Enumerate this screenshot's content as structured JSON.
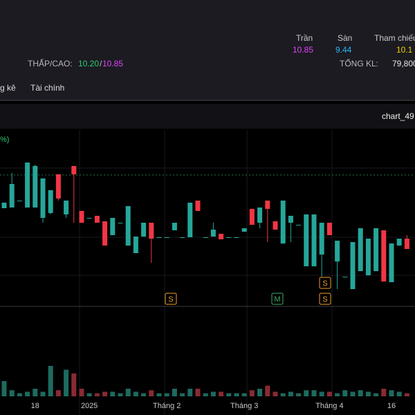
{
  "header": {
    "ceiling_label": "Trần",
    "ceiling": "10.85",
    "floor_label": "Sàn",
    "floor": "9.44",
    "ref_label": "Tham chiếu",
    "ref": "10.1",
    "lowhigh_label": "THẤP/CAO:",
    "low": "10.20",
    "separator": "/",
    "high": "10.85",
    "volume_label": "TỔNG KL:",
    "volume": "79,800"
  },
  "tabs": [
    "g kê",
    "Tài chính"
  ],
  "chart_title": "chart_49",
  "chart_data": {
    "type": "candlestick",
    "legend": "%)",
    "up_color": "#26a69a",
    "down_color": "#f23645",
    "volume_up_color": "#1d6b60",
    "volume_down_color": "#8a2a33",
    "ylim": [
      9.0,
      11.6
    ],
    "vlim": [
      0,
      50
    ],
    "categories": [
      null,
      null,
      null,
      null,
      "18",
      null,
      null,
      null,
      null,
      null,
      null,
      "2025",
      null,
      null,
      null,
      null,
      null,
      null,
      null,
      null,
      null,
      "Tháng 2",
      null,
      null,
      null,
      null,
      null,
      null,
      null,
      null,
      null,
      "Tháng 3",
      null,
      null,
      null,
      null,
      null,
      null,
      null,
      null,
      null,
      null,
      "Tháng 4",
      null,
      null,
      null,
      null,
      null,
      null,
      null,
      "16",
      null,
      null
    ],
    "open": [
      10.49,
      10.5,
      10.6,
      10.5,
      10.5,
      10.35,
      10.42,
      10.98,
      10.4,
      11.1,
      10.45,
      10.35,
      10.38,
      10.3,
      10.1,
      10.28,
      9.95,
      9.84,
      10.08,
      10.28,
      10.07,
      10.07,
      10.17,
      10.07,
      10.07,
      10.6,
      10.07,
      10.08,
      10.12,
      10.07,
      10.07,
      10.15,
      10.48,
      10.28,
      10.6,
      10.3,
      9.98,
      10.28,
      10.25,
      9.65,
      9.65,
      9.82,
      10.28,
      9.72,
      9.5,
      9.32,
      9.58,
      9.52,
      9.58,
      10.17,
      9.42,
      9.95,
      10.05
    ],
    "high": [
      10.57,
      11.0,
      10.6,
      11.15,
      11.12,
      10.92,
      10.75,
      10.98,
      10.6,
      11.1,
      10.45,
      10.35,
      10.38,
      10.3,
      10.35,
      10.28,
      10.52,
      10.08,
      10.28,
      10.28,
      10.07,
      10.07,
      10.28,
      10.07,
      10.57,
      10.6,
      10.07,
      10.28,
      10.12,
      10.07,
      10.07,
      10.2,
      10.48,
      10.5,
      10.6,
      10.3,
      10.6,
      10.38,
      10.25,
      10.4,
      10.4,
      10.28,
      10.28,
      10.02,
      9.5,
      10.0,
      10.2,
      10.05,
      10.2,
      10.17,
      9.98,
      10.05,
      10.1
    ],
    "low": [
      10.49,
      10.5,
      10.6,
      10.5,
      10.5,
      10.28,
      10.4,
      10.6,
      10.35,
      10.28,
      10.28,
      10.35,
      10.28,
      9.95,
      10.1,
      10.28,
      9.95,
      9.84,
      10.08,
      9.7,
      10.07,
      10.07,
      10.17,
      10.07,
      10.07,
      10.45,
      10.07,
      10.08,
      10.04,
      10.07,
      10.07,
      10.15,
      10.25,
      10.2,
      10.0,
      10.18,
      9.98,
      10.0,
      10.25,
      9.65,
      9.65,
      9.5,
      10.1,
      9.32,
      9.5,
      9.32,
      9.58,
      9.52,
      9.58,
      9.43,
      9.42,
      9.95,
      9.9
    ],
    "close": [
      10.57,
      10.84,
      10.6,
      11.15,
      11.1,
      10.92,
      10.75,
      10.63,
      10.6,
      10.98,
      10.28,
      10.35,
      10.28,
      9.95,
      10.35,
      10.28,
      10.52,
      10.08,
      10.28,
      10.05,
      10.07,
      10.07,
      10.28,
      10.07,
      10.57,
      10.45,
      10.07,
      10.18,
      10.04,
      10.07,
      10.07,
      10.2,
      10.25,
      10.5,
      10.48,
      10.18,
      10.6,
      10.38,
      10.25,
      10.4,
      10.4,
      10.28,
      10.1,
      10.02,
      9.5,
      10.0,
      10.2,
      10.05,
      10.2,
      9.43,
      9.98,
      10.05,
      9.9
    ],
    "volumes": [
      20,
      8,
      4,
      6,
      10,
      6,
      40,
      8,
      35,
      30,
      10,
      4,
      4,
      6,
      6,
      4,
      10,
      6,
      4,
      8,
      4,
      4,
      10,
      4,
      10,
      10,
      4,
      6,
      6,
      4,
      4,
      4,
      8,
      10,
      14,
      6,
      4,
      6,
      4,
      8,
      8,
      6,
      6,
      4,
      8,
      6,
      8,
      6,
      4,
      10,
      8,
      6,
      4
    ],
    "markers": [
      "S",
      "M",
      "S",
      "S"
    ]
  }
}
